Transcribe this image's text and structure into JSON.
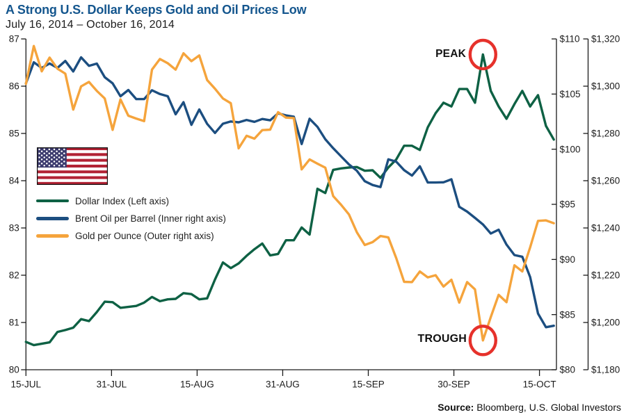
{
  "title": "A Strong U.S. Dollar Keeps Gold and Oil Prices Low",
  "subtitle": "July 16, 2014 – October 16, 2014",
  "source": {
    "label": "Source:",
    "text": " Bloomberg, U.S. Global Investors"
  },
  "annotations": {
    "peak_label": "PEAK",
    "trough_label": "TROUGH"
  },
  "icons": {
    "flag": "us-flag-icon"
  },
  "colors": {
    "title": "#14568e",
    "dollar_index": "#0e6144",
    "brent_oil": "#1c4e80",
    "gold": "#f5a43c",
    "highlight_circle": "#e6312b",
    "axis": "#1a1a1a",
    "text": "#1c1c1c",
    "flag_red": "#B22234",
    "flag_blue": "#3C3B6E"
  },
  "legend": [
    {
      "label": "Dollar Index (Left axis)",
      "series": "dollar_index"
    },
    {
      "label": "Brent Oil per Barrel (Inner right axis)",
      "series": "brent_oil"
    },
    {
      "label": "Gold per Ounce (Outer right axis)",
      "series": "gold"
    }
  ],
  "chart_data": {
    "type": "line",
    "title": "A Strong U.S. Dollar Keeps Gold and Oil Prices Low",
    "subtitle": "July 16, 2014 – October 16, 2014",
    "x_axis": {
      "tick_labels": [
        "15-JUL",
        "31-JUL",
        "15-AUG",
        "31-AUG",
        "15-SEP",
        "30-SEP",
        "15-OCT"
      ]
    },
    "left_axis": {
      "label": "Dollar Index",
      "min": 80,
      "max": 87,
      "ticks": [
        80,
        81,
        82,
        83,
        84,
        85,
        86,
        87
      ]
    },
    "inner_right_axis": {
      "label": "Brent Oil per Barrel",
      "min": 80,
      "max": 110,
      "ticks": [
        80,
        85,
        90,
        95,
        100,
        105,
        110
      ],
      "format": "dollar"
    },
    "outer_right_axis": {
      "label": "Gold per Ounce",
      "min": 1180,
      "max": 1320,
      "ticks": [
        1180,
        1200,
        1220,
        1240,
        1260,
        1280,
        1300,
        1320
      ],
      "format": "dollar_comma"
    },
    "series": [
      {
        "name": "Dollar Index",
        "axis": "left",
        "color_key": "dollar_index",
        "values": [
          80.59,
          80.52,
          80.55,
          80.58,
          80.8,
          80.84,
          80.89,
          81.07,
          81.03,
          81.22,
          81.44,
          81.43,
          81.31,
          81.33,
          81.35,
          81.42,
          81.54,
          81.45,
          81.49,
          81.5,
          81.62,
          81.6,
          81.49,
          81.51,
          81.91,
          82.27,
          82.15,
          82.25,
          82.41,
          82.55,
          82.67,
          82.42,
          82.45,
          82.74,
          82.74,
          83.01,
          82.86,
          83.83,
          83.74,
          84.23,
          84.26,
          84.28,
          84.29,
          84.21,
          84.22,
          84.06,
          84.28,
          84.45,
          84.74,
          84.74,
          84.65,
          85.13,
          85.43,
          85.65,
          85.57,
          85.94,
          85.94,
          85.65,
          86.67,
          85.9,
          85.57,
          85.31,
          85.62,
          85.9,
          85.57,
          85.81,
          85.16,
          84.87
        ]
      },
      {
        "name": "Brent Oil per Barrel",
        "axis": "inner_right",
        "color_key": "brent_oil",
        "values": [
          105.97,
          107.88,
          107.37,
          107.77,
          107.37,
          108.0,
          107.05,
          108.33,
          107.56,
          107.76,
          106.53,
          105.97,
          104.8,
          105.37,
          104.54,
          104.54,
          105.34,
          105.0,
          104.8,
          103.17,
          104.26,
          102.21,
          103.6,
          102.3,
          101.47,
          102.31,
          102.51,
          102.44,
          102.65,
          102.48,
          102.74,
          102.62,
          103.25,
          103.07,
          102.95,
          100.47,
          102.76,
          102.03,
          100.9,
          100.09,
          99.35,
          98.62,
          98.05,
          97.1,
          96.75,
          96.57,
          99.08,
          98.87,
          98.1,
          97.61,
          98.45,
          96.98,
          96.98,
          97.0,
          97.27,
          94.77,
          94.34,
          93.77,
          93.18,
          92.35,
          92.7,
          91.35,
          90.4,
          90.25,
          88.4,
          85.1,
          83.86,
          83.99
        ]
      },
      {
        "name": "Gold per Ounce",
        "axis": "outer_right",
        "color_key": "gold",
        "values": [
          1301.0,
          1317.0,
          1306.3,
          1312.1,
          1307.4,
          1305.3,
          1290.1,
          1299.9,
          1301.8,
          1298.0,
          1294.8,
          1281.5,
          1294.4,
          1287.5,
          1286.3,
          1285.2,
          1307.0,
          1311.5,
          1309.7,
          1307.0,
          1313.9,
          1310.6,
          1313.0,
          1302.6,
          1298.9,
          1294.8,
          1292.8,
          1273.7,
          1279.0,
          1277.8,
          1281.4,
          1281.6,
          1289.0,
          1286.7,
          1286.5,
          1264.8,
          1269.0,
          1267.2,
          1265.5,
          1253.5,
          1249.8,
          1245.7,
          1238.2,
          1232.8,
          1234.0,
          1236.6,
          1236.0,
          1227.2,
          1217.2,
          1217.1,
          1221.6,
          1219.1,
          1220.0,
          1215.2,
          1218.1,
          1208.4,
          1217.1,
          1214.0,
          1192.4,
          1202.3,
          1211.7,
          1208.6,
          1224.2,
          1221.6,
          1231.8,
          1243.0,
          1243.2,
          1242.0
        ]
      }
    ],
    "highlights": [
      {
        "label": "PEAK",
        "series": "Dollar Index",
        "index": 58,
        "value": 86.67
      },
      {
        "label": "TROUGH",
        "series": "Gold per Ounce",
        "index": 58,
        "value": 1192.4
      }
    ]
  }
}
